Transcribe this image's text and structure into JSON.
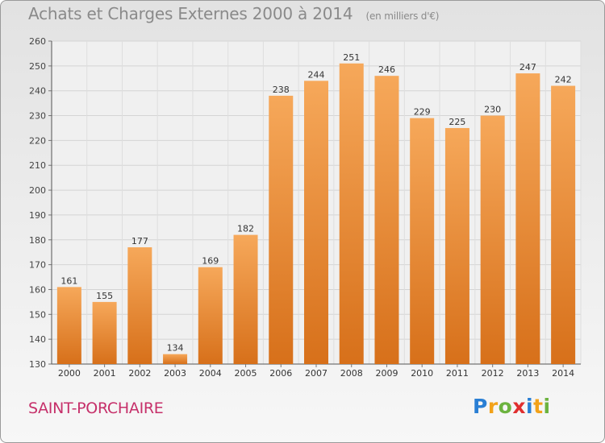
{
  "header": {
    "title": "Achats et Charges Externes 2000 à 2014",
    "unit": "(en milliers d'€)"
  },
  "footer": {
    "city": "SAINT-PORCHAIRE",
    "logo": "Proxiti"
  },
  "colors": {
    "bar_top": "#f6a85a",
    "bar_bottom": "#d7701a",
    "city_text": "#c6306a",
    "title_text": "#8a8a8a"
  },
  "chart_data": {
    "type": "bar",
    "title": "Achats et Charges Externes 2000 à 2014",
    "subtitle": "(en milliers d'€)",
    "xlabel": "",
    "ylabel": "",
    "categories": [
      "2000",
      "2001",
      "2002",
      "2003",
      "2004",
      "2005",
      "2006",
      "2007",
      "2008",
      "2009",
      "2010",
      "2011",
      "2012",
      "2013",
      "2014"
    ],
    "values": [
      161,
      155,
      177,
      134,
      169,
      182,
      238,
      244,
      251,
      246,
      229,
      225,
      230,
      247,
      242
    ],
    "ylim": [
      130,
      260
    ],
    "yticks": [
      130,
      140,
      150,
      160,
      170,
      180,
      190,
      200,
      210,
      220,
      230,
      240,
      250,
      260
    ],
    "grid": true,
    "legend": "none"
  }
}
